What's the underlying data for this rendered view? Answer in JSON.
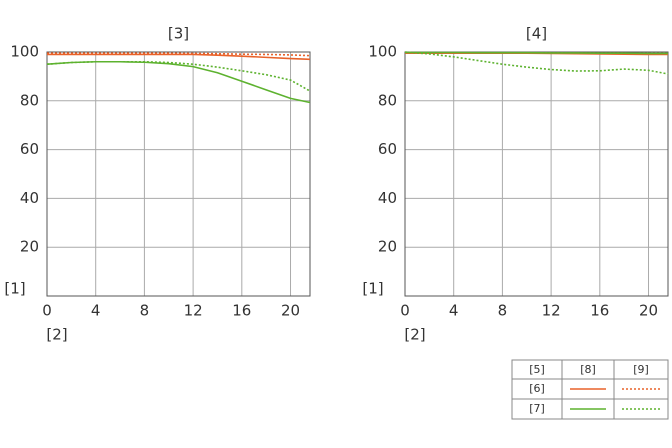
{
  "chart_data": [
    {
      "type": "line",
      "title": "[3]",
      "xlabel": "[2]",
      "ylabel": "[1]",
      "x": [
        0,
        2,
        4,
        6,
        8,
        10,
        12,
        14,
        16,
        18,
        20,
        21.6
      ],
      "xlim": [
        0,
        21.6
      ],
      "xticks": [
        0,
        4,
        8,
        12,
        16,
        20
      ],
      "ylim": [
        0,
        100
      ],
      "yticks": [
        20,
        40,
        60,
        80,
        100
      ],
      "grid": true,
      "series": [
        {
          "color": "#e8622a",
          "dash": false,
          "values": [
            99,
            99,
            99,
            99,
            99,
            99,
            99,
            98.7,
            98.3,
            97.8,
            97.3,
            97
          ]
        },
        {
          "color": "#e8622a",
          "dash": true,
          "values": [
            99.5,
            99.5,
            99.5,
            99.5,
            99.5,
            99.5,
            99.4,
            99.3,
            99.1,
            99,
            98.8,
            98.5
          ]
        },
        {
          "color": "#5db22f",
          "dash": false,
          "values": [
            95,
            95.7,
            96,
            96,
            95.8,
            95.2,
            94,
            91.5,
            88,
            84.5,
            81,
            79.3
          ]
        },
        {
          "color": "#5db22f",
          "dash": true,
          "values": [
            95,
            95.7,
            96,
            96,
            96,
            95.7,
            95,
            93.8,
            92.3,
            90.7,
            88.5,
            84
          ]
        }
      ]
    },
    {
      "type": "line",
      "title": "[4]",
      "xlabel": "[2]",
      "ylabel": "[1]",
      "x": [
        0,
        2,
        4,
        6,
        8,
        10,
        12,
        14,
        16,
        18,
        20,
        21.6
      ],
      "xlim": [
        0,
        21.6
      ],
      "xticks": [
        0,
        4,
        8,
        12,
        16,
        20
      ],
      "ylim": [
        0,
        100
      ],
      "yticks": [
        20,
        40,
        60,
        80,
        100
      ],
      "grid": true,
      "series": [
        {
          "color": "#e8622a",
          "dash": false,
          "values": [
            99.5,
            99.5,
            99.5,
            99.5,
            99.5,
            99.5,
            99.4,
            99.3,
            99.2,
            99.1,
            99,
            99
          ]
        },
        {
          "color": "#e8622a",
          "dash": true,
          "values": [
            99.6,
            99.6,
            99.6,
            99.6,
            99.6,
            99.6,
            99.6,
            99.5,
            99.5,
            99.5,
            99.4,
            99.4
          ]
        },
        {
          "color": "#5db22f",
          "dash": false,
          "values": [
            99.8,
            99.8,
            99.8,
            99.7,
            99.7,
            99.7,
            99.6,
            99.6,
            99.5,
            99.5,
            99.4,
            99.4
          ]
        },
        {
          "color": "#5db22f",
          "dash": true,
          "values": [
            100,
            99.2,
            98,
            96.5,
            95,
            93.8,
            92.8,
            92.2,
            92.3,
            93,
            92.5,
            91
          ]
        }
      ]
    }
  ],
  "legend": {
    "header": [
      "[5]",
      "[8]",
      "[9]"
    ],
    "rows": [
      "[6]",
      "[7]"
    ]
  }
}
